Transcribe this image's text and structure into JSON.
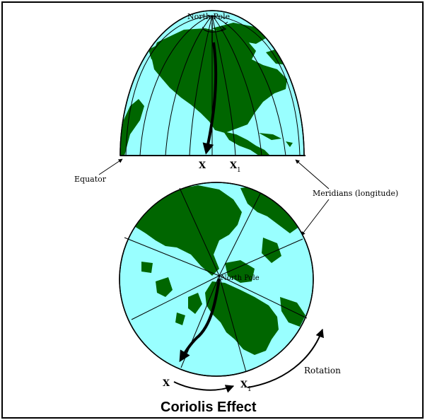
{
  "labels": {
    "north_pole_top": "North Pole",
    "north_pole_center": "North Pole",
    "equator": "Equator",
    "meridians": "Meridians (longitude)",
    "x_top": "X",
    "x1_top": "X",
    "x1_top_sub": "1",
    "x_bottom": "X",
    "x1_bottom": "X",
    "x1_bottom_sub": "1",
    "rotation": "Rotation",
    "title": "Coriolis Effect"
  },
  "colors": {
    "ocean": "#99ffff",
    "land": "#006600",
    "line": "#000000",
    "border": "#000000"
  }
}
